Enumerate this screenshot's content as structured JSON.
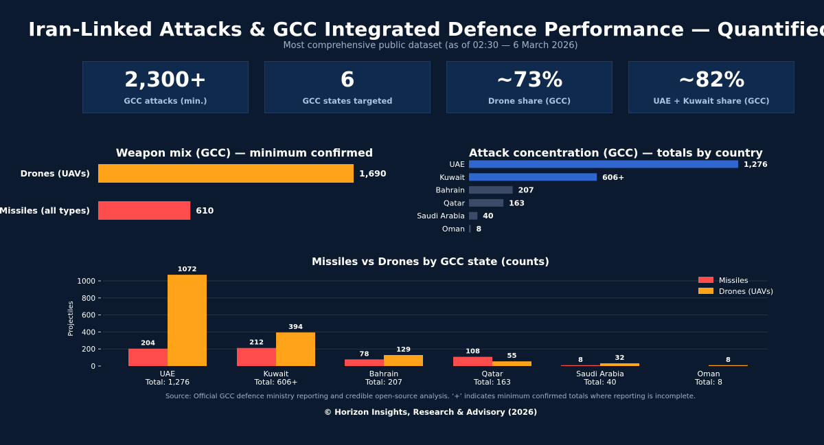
{
  "header": {
    "title": "Iran-Linked Attacks & GCC Integrated Defence Performance — Quantified",
    "subtitle": "Most comprehensive public dataset (as of 02:30 — 6 March 2026)"
  },
  "kpis": [
    {
      "value": "2,300+",
      "label": "GCC attacks (min.)"
    },
    {
      "value": "6",
      "label": "GCC states targeted"
    },
    {
      "value": "~73%",
      "label": "Drone share (GCC)"
    },
    {
      "value": "~82%",
      "label": "UAE + Kuwait share (GCC)"
    }
  ],
  "colors": {
    "missiles": "#ff4d4d",
    "drones": "#ffa31a",
    "highlight": "#2f66d0",
    "muted": "#3b4a66",
    "background": "#0b1a2e"
  },
  "chart_data": [
    {
      "type": "bar",
      "orientation": "horizontal",
      "title": "Weapon mix (GCC) — minimum confirmed",
      "categories": [
        "Drones (UAVs)",
        "Missiles (all types)"
      ],
      "values": [
        1690,
        610
      ],
      "value_labels": [
        "1,690",
        "610"
      ]
    },
    {
      "type": "bar",
      "orientation": "horizontal",
      "title": "Attack concentration (GCC) — totals by country",
      "categories": [
        "UAE",
        "Kuwait",
        "Bahrain",
        "Qatar",
        "Saudi Arabia",
        "Oman"
      ],
      "values": [
        1276,
        606,
        207,
        163,
        40,
        8
      ],
      "value_labels": [
        "1,276",
        "606+",
        "207",
        "163",
        "40",
        "8"
      ],
      "highlighted": [
        true,
        true,
        false,
        false,
        false,
        false
      ]
    },
    {
      "type": "bar",
      "orientation": "vertical",
      "title": "Missiles vs Drones by GCC state (counts)",
      "categories": [
        "UAE",
        "Kuwait",
        "Bahrain",
        "Qatar",
        "Saudi Arabia",
        "Oman"
      ],
      "category_totals": [
        "Total: 1,276",
        "Total: 606+",
        "Total: 207",
        "Total: 163",
        "Total: 40",
        "Total: 8"
      ],
      "series": [
        {
          "name": "Missiles",
          "values": [
            204,
            212,
            78,
            108,
            8,
            0
          ],
          "labels": [
            "204",
            "212",
            "78",
            "108",
            "8",
            ""
          ]
        },
        {
          "name": "Drones (UAVs)",
          "values": [
            1072,
            394,
            129,
            55,
            32,
            8
          ],
          "labels": [
            "1072",
            "394",
            "129",
            "55",
            "32",
            "8"
          ]
        }
      ],
      "ylabel": "Projectiles",
      "ylim": [
        0,
        1120
      ],
      "yticks": [
        0,
        200,
        400,
        600,
        800,
        1000
      ],
      "ytick_labels": [
        "0",
        "200",
        "400",
        "600",
        "800",
        "1000"
      ],
      "grid": true,
      "legend_position": "top-right"
    }
  ],
  "footer": {
    "source": "Source: Official GCC defence ministry reporting and credible open-source analysis. ‘+’ indicates minimum confirmed totals where reporting is incomplete.",
    "copyright": "© Horizon Insights, Research & Advisory (2026)"
  }
}
